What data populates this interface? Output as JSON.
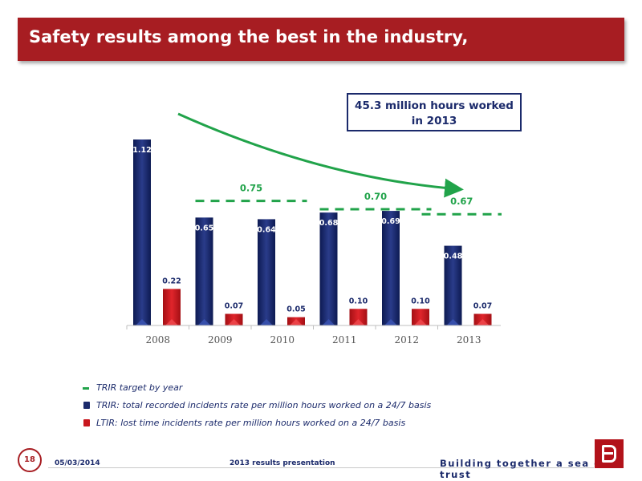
{
  "header": {
    "title": "Safety results among the best in the industry,"
  },
  "callout": {
    "line1": "45.3 million hours worked",
    "line2": "in 2013"
  },
  "colors": {
    "trir": "#1b2a6b",
    "ltir": "#c8171e",
    "target": "#21a34a",
    "brand": "#a71d22"
  },
  "chart_data": {
    "type": "bar",
    "categories": [
      "2008",
      "2009",
      "2010",
      "2011",
      "2012",
      "2013"
    ],
    "series": [
      {
        "name": "TRIR",
        "values": [
          1.12,
          0.65,
          0.64,
          0.68,
          0.69,
          0.48
        ]
      },
      {
        "name": "LTIR",
        "values": [
          0.22,
          0.07,
          0.05,
          0.1,
          0.1,
          0.07
        ]
      }
    ],
    "value_labels": {
      "TRIR": [
        "1.12",
        "0.65",
        "0.64",
        "0.68",
        "0.69",
        "0.48"
      ],
      "LTIR": [
        "0.22",
        "0.07",
        "0.05",
        "0.10",
        "0.10",
        "0.07"
      ]
    },
    "targets": [
      {
        "label": "0.75",
        "value": 0.75,
        "from": "2009",
        "to": "2010"
      },
      {
        "label": "0.70",
        "value": 0.7,
        "from": "2011",
        "to": "2012"
      },
      {
        "label": "0.67",
        "value": 0.67,
        "from": "2013",
        "to": "2013"
      }
    ],
    "ylim": [
      0,
      1.12
    ],
    "trend_arrow": "downward, 2008 to 2013",
    "grid": false
  },
  "legend": {
    "target": "TRIR target by year",
    "trir": "TRIR: total recorded incidents rate per million hours worked on a 24/7 basis",
    "ltir": "LTIR: lost time incidents rate per million hours worked on a 24/7 basis"
  },
  "footer": {
    "page": "18",
    "date": "05/03/2014",
    "presentation": "2013 results presentation",
    "tagline": "Building together a sea of trust"
  }
}
